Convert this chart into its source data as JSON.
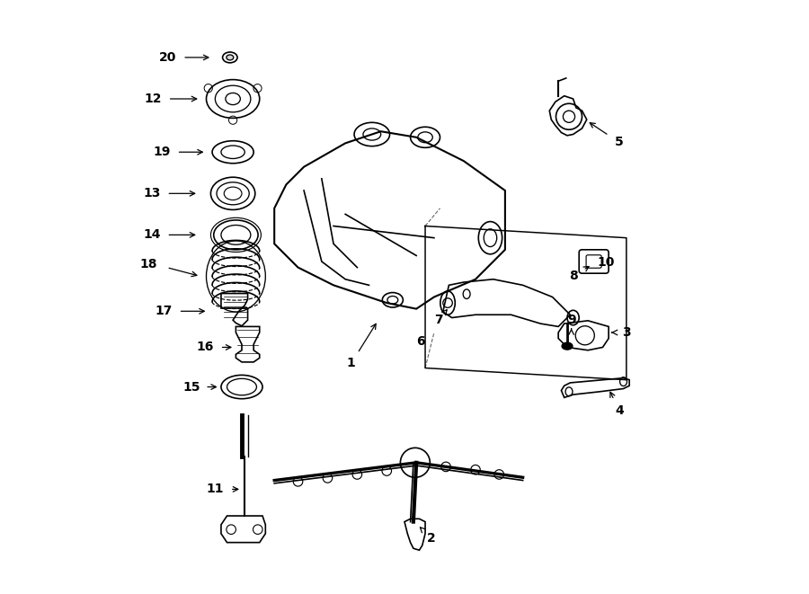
{
  "bg_color": "#ffffff",
  "fig_width": 9.0,
  "fig_height": 6.61,
  "lw": 1.2,
  "lw_thick": 1.5,
  "color": "black"
}
